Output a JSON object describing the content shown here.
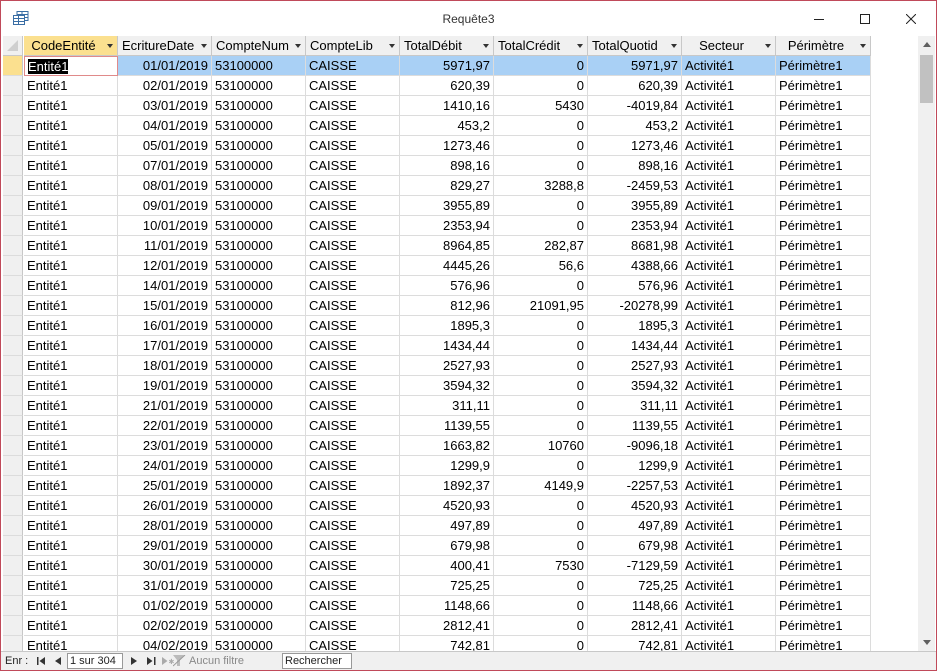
{
  "window": {
    "title": "Requête3"
  },
  "columns": [
    {
      "label": "CodeEntité",
      "align": "left"
    },
    {
      "label": "EcritureDate",
      "align": "right"
    },
    {
      "label": "CompteNum",
      "align": "left"
    },
    {
      "label": "CompteLib",
      "align": "left"
    },
    {
      "label": "TotalDébit",
      "align": "right"
    },
    {
      "label": "TotalCrédit",
      "align": "right"
    },
    {
      "label": "TotalQuotid",
      "align": "right"
    },
    {
      "label": "Secteur",
      "align": "left"
    },
    {
      "label": "Périmètre",
      "align": "left"
    }
  ],
  "rows": [
    [
      "Entité1",
      "01/01/2019",
      "53100000",
      "CAISSE",
      "5971,97",
      "0",
      "5971,97",
      "Activité1",
      "Périmètre1"
    ],
    [
      "Entité1",
      "02/01/2019",
      "53100000",
      "CAISSE",
      "620,39",
      "0",
      "620,39",
      "Activité1",
      "Périmètre1"
    ],
    [
      "Entité1",
      "03/01/2019",
      "53100000",
      "CAISSE",
      "1410,16",
      "5430",
      "-4019,84",
      "Activité1",
      "Périmètre1"
    ],
    [
      "Entité1",
      "04/01/2019",
      "53100000",
      "CAISSE",
      "453,2",
      "0",
      "453,2",
      "Activité1",
      "Périmètre1"
    ],
    [
      "Entité1",
      "05/01/2019",
      "53100000",
      "CAISSE",
      "1273,46",
      "0",
      "1273,46",
      "Activité1",
      "Périmètre1"
    ],
    [
      "Entité1",
      "07/01/2019",
      "53100000",
      "CAISSE",
      "898,16",
      "0",
      "898,16",
      "Activité1",
      "Périmètre1"
    ],
    [
      "Entité1",
      "08/01/2019",
      "53100000",
      "CAISSE",
      "829,27",
      "3288,8",
      "-2459,53",
      "Activité1",
      "Périmètre1"
    ],
    [
      "Entité1",
      "09/01/2019",
      "53100000",
      "CAISSE",
      "3955,89",
      "0",
      "3955,89",
      "Activité1",
      "Périmètre1"
    ],
    [
      "Entité1",
      "10/01/2019",
      "53100000",
      "CAISSE",
      "2353,94",
      "0",
      "2353,94",
      "Activité1",
      "Périmètre1"
    ],
    [
      "Entité1",
      "11/01/2019",
      "53100000",
      "CAISSE",
      "8964,85",
      "282,87",
      "8681,98",
      "Activité1",
      "Périmètre1"
    ],
    [
      "Entité1",
      "12/01/2019",
      "53100000",
      "CAISSE",
      "4445,26",
      "56,6",
      "4388,66",
      "Activité1",
      "Périmètre1"
    ],
    [
      "Entité1",
      "14/01/2019",
      "53100000",
      "CAISSE",
      "576,96",
      "0",
      "576,96",
      "Activité1",
      "Périmètre1"
    ],
    [
      "Entité1",
      "15/01/2019",
      "53100000",
      "CAISSE",
      "812,96",
      "21091,95",
      "-20278,99",
      "Activité1",
      "Périmètre1"
    ],
    [
      "Entité1",
      "16/01/2019",
      "53100000",
      "CAISSE",
      "1895,3",
      "0",
      "1895,3",
      "Activité1",
      "Périmètre1"
    ],
    [
      "Entité1",
      "17/01/2019",
      "53100000",
      "CAISSE",
      "1434,44",
      "0",
      "1434,44",
      "Activité1",
      "Périmètre1"
    ],
    [
      "Entité1",
      "18/01/2019",
      "53100000",
      "CAISSE",
      "2527,93",
      "0",
      "2527,93",
      "Activité1",
      "Périmètre1"
    ],
    [
      "Entité1",
      "19/01/2019",
      "53100000",
      "CAISSE",
      "3594,32",
      "0",
      "3594,32",
      "Activité1",
      "Périmètre1"
    ],
    [
      "Entité1",
      "21/01/2019",
      "53100000",
      "CAISSE",
      "311,11",
      "0",
      "311,11",
      "Activité1",
      "Périmètre1"
    ],
    [
      "Entité1",
      "22/01/2019",
      "53100000",
      "CAISSE",
      "1139,55",
      "0",
      "1139,55",
      "Activité1",
      "Périmètre1"
    ],
    [
      "Entité1",
      "23/01/2019",
      "53100000",
      "CAISSE",
      "1663,82",
      "10760",
      "-9096,18",
      "Activité1",
      "Périmètre1"
    ],
    [
      "Entité1",
      "24/01/2019",
      "53100000",
      "CAISSE",
      "1299,9",
      "0",
      "1299,9",
      "Activité1",
      "Périmètre1"
    ],
    [
      "Entité1",
      "25/01/2019",
      "53100000",
      "CAISSE",
      "1892,37",
      "4149,9",
      "-2257,53",
      "Activité1",
      "Périmètre1"
    ],
    [
      "Entité1",
      "26/01/2019",
      "53100000",
      "CAISSE",
      "4520,93",
      "0",
      "4520,93",
      "Activité1",
      "Périmètre1"
    ],
    [
      "Entité1",
      "28/01/2019",
      "53100000",
      "CAISSE",
      "497,89",
      "0",
      "497,89",
      "Activité1",
      "Périmètre1"
    ],
    [
      "Entité1",
      "29/01/2019",
      "53100000",
      "CAISSE",
      "679,98",
      "0",
      "679,98",
      "Activité1",
      "Périmètre1"
    ],
    [
      "Entité1",
      "30/01/2019",
      "53100000",
      "CAISSE",
      "400,41",
      "7530",
      "-7129,59",
      "Activité1",
      "Périmètre1"
    ],
    [
      "Entité1",
      "31/01/2019",
      "53100000",
      "CAISSE",
      "725,25",
      "0",
      "725,25",
      "Activité1",
      "Périmètre1"
    ],
    [
      "Entité1",
      "01/02/2019",
      "53100000",
      "CAISSE",
      "1148,66",
      "0",
      "1148,66",
      "Activité1",
      "Périmètre1"
    ],
    [
      "Entité1",
      "02/02/2019",
      "53100000",
      "CAISSE",
      "2812,41",
      "0",
      "2812,41",
      "Activité1",
      "Périmètre1"
    ],
    [
      "Entité1",
      "04/02/2019",
      "53100000",
      "CAISSE",
      "742,81",
      "0",
      "742,81",
      "Activité1",
      "Périmètre1"
    ]
  ],
  "navbar": {
    "record_label": "Enr :",
    "record_position": "1 sur 304",
    "filter_label": "Aucun filtre",
    "search_placeholder": "Rechercher"
  },
  "colors": {
    "window_border": "#c04a5a",
    "active_header": "#fbe08f",
    "selected_row": "#a9d0f5"
  }
}
